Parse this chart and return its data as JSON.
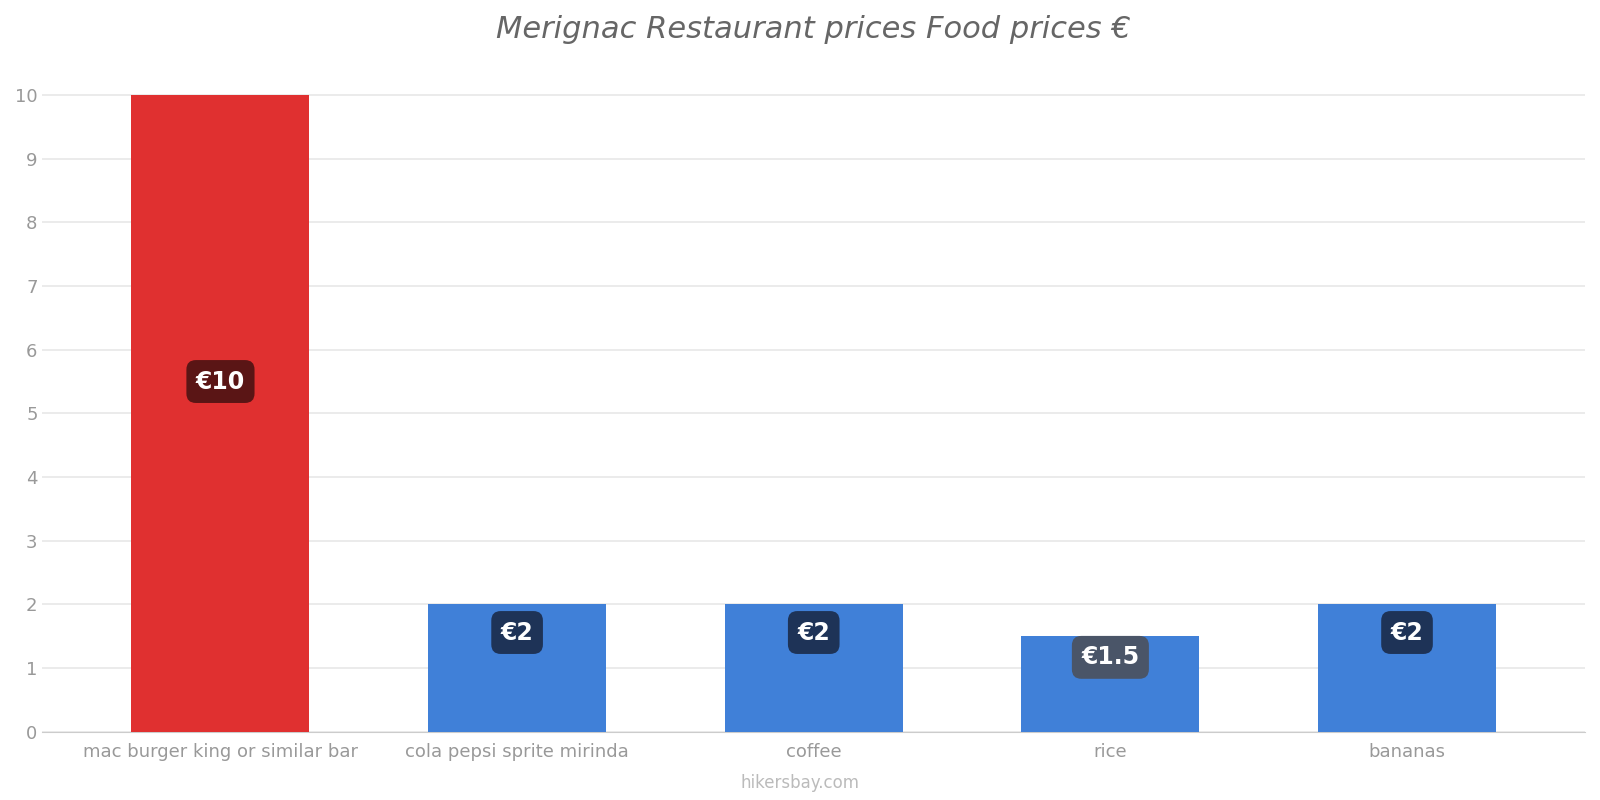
{
  "title": "Merignac Restaurant prices Food prices €",
  "categories": [
    "mac burger king or similar bar",
    "cola pepsi sprite mirinda",
    "coffee",
    "rice",
    "bananas"
  ],
  "values": [
    10,
    2,
    2,
    1.5,
    2
  ],
  "bar_colors": [
    "#e03030",
    "#4080d8",
    "#4080d8",
    "#4080d8",
    "#4080d8"
  ],
  "labels": [
    "€10",
    "€2",
    "€2",
    "€1.5",
    "€2"
  ],
  "label_box_colors_red": "#5a1515",
  "label_box_colors_blue": "#1e3357",
  "label_box_colors_rice": "#4a5568",
  "ylim": [
    0,
    10.5
  ],
  "yticks": [
    0,
    1,
    2,
    3,
    4,
    5,
    6,
    7,
    8,
    9,
    10
  ],
  "title_fontsize": 22,
  "tick_fontsize": 13,
  "label_fontsize": 17,
  "watermark": "hikersbay.com",
  "background_color": "#ffffff",
  "grid_color": "#e8e8e8",
  "bar_width": 0.6
}
